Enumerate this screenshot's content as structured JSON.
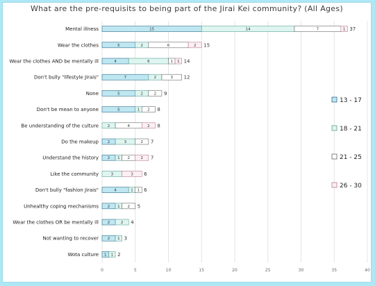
{
  "chart_data": {
    "type": "bar",
    "orientation": "horizontal",
    "stacked": true,
    "title": "What are the pre-requisits to being part of the Jirai Kei community? (All Ages)",
    "categories": [
      "Mental illness",
      "Wear the clothes",
      "Wear the clothes AND be mentally ill",
      "Don't bully \"lifestyle Jirais\"",
      "None",
      "Don't be mean to anyone",
      "Be understanding of the culture",
      "Do the makeup",
      "Understand the history",
      "Like the community",
      "Don't bully \"fashion Jirais\"",
      "Unhealthy coping mechanisms",
      "Wear the clothes OR be mentally ill",
      "Not wanting to recover",
      "Wota culture"
    ],
    "series": [
      {
        "name": "13 - 17",
        "color": "#bfe7f2",
        "values": [
          15,
          5,
          4,
          7,
          5,
          5,
          0,
          2,
          2,
          0,
          4,
          2,
          2,
          2,
          1
        ]
      },
      {
        "name": "18 - 21",
        "color": "#dff5f0",
        "values": [
          14,
          2,
          6,
          2,
          2,
          1,
          2,
          3,
          1,
          3,
          1,
          1,
          2,
          1,
          1
        ]
      },
      {
        "name": "21 - 25",
        "color": "#ffffff",
        "values": [
          7,
          6,
          1,
          3,
          2,
          2,
          4,
          2,
          2,
          0,
          1,
          2,
          0,
          0,
          0
        ]
      },
      {
        "name": "26 - 30",
        "color": "#fbeff3",
        "values": [
          1,
          2,
          1,
          0,
          0,
          0,
          2,
          0,
          2,
          3,
          0,
          0,
          0,
          0,
          0
        ]
      }
    ],
    "totals": [
      37,
      15,
      14,
      12,
      9,
      8,
      8,
      7,
      7,
      6,
      6,
      5,
      4,
      3,
      2
    ],
    "xlim": [
      0,
      40
    ],
    "xticks": [
      0,
      5,
      10,
      15,
      20,
      25,
      30,
      35,
      40
    ],
    "grid": true,
    "legend_position": "right"
  }
}
